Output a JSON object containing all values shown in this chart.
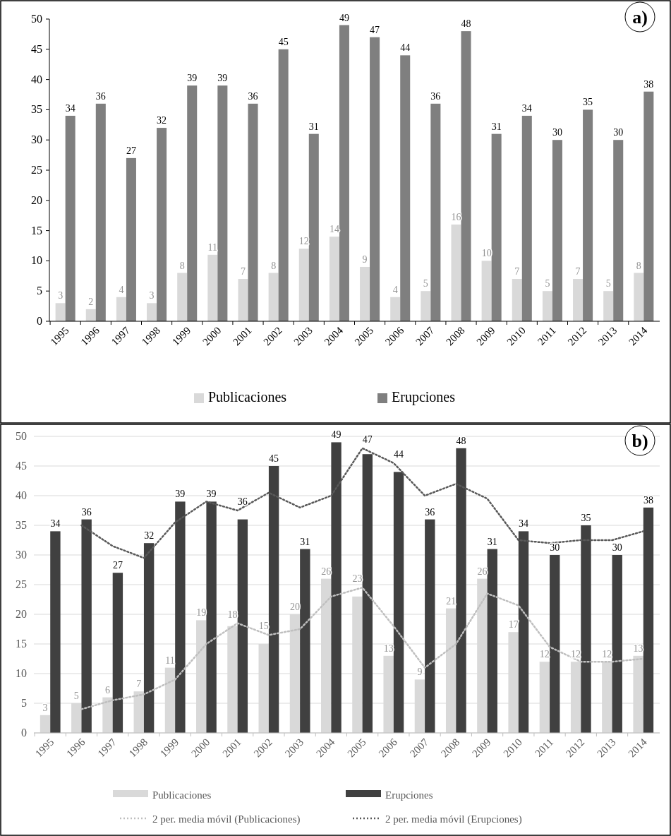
{
  "chart_data": [
    {
      "type": "bar",
      "categories": [
        "1995",
        "1996",
        "1997",
        "1998",
        "1999",
        "2000",
        "2001",
        "2002",
        "2003",
        "2004",
        "2005",
        "2006",
        "2007",
        "2008",
        "2009",
        "2010",
        "2011",
        "2012",
        "2013",
        "2014"
      ],
      "series": [
        {
          "name": "Publicaciones",
          "color": "#d9d9d9",
          "values": [
            3,
            2,
            4,
            3,
            8,
            11,
            7,
            8,
            12,
            14,
            9,
            4,
            5,
            16,
            10,
            7,
            5,
            7,
            5,
            8
          ],
          "value_labels": [
            "3",
            "2",
            "4",
            "3",
            "8",
            "11",
            "7",
            "8",
            "12",
            "14",
            "9",
            "4",
            "5",
            "16",
            "10",
            "7",
            "5",
            "7",
            "5",
            "8"
          ]
        },
        {
          "name": "Erupciones",
          "color": "#7f7f7f",
          "values": [
            34,
            36,
            27,
            32,
            39,
            39,
            36,
            45,
            31,
            49,
            47,
            44,
            36,
            48,
            31,
            34,
            30,
            35,
            30,
            38
          ],
          "value_labels": [
            "34",
            "36",
            "27",
            "32",
            "39",
            "39",
            "36",
            "45",
            "31",
            "49",
            "47",
            "44",
            "36",
            "48",
            "31",
            "34",
            "30",
            "35",
            "30",
            "38"
          ]
        }
      ],
      "ylim": [
        0,
        50
      ],
      "yticks": [
        0,
        5,
        10,
        15,
        20,
        25,
        30,
        35,
        40,
        45,
        50
      ],
      "grid": false,
      "legend": "bottom",
      "annotations": [
        "a)"
      ]
    },
    {
      "type": "bar",
      "categories": [
        "1995",
        "1996",
        "1997",
        "1998",
        "1999",
        "2000",
        "2001",
        "2002",
        "2003",
        "2004",
        "2005",
        "2006",
        "2007",
        "2008",
        "2009",
        "2010",
        "2011",
        "2012",
        "2013",
        "2014"
      ],
      "series": [
        {
          "name": "Publicaciones",
          "color": "#d9d9d9",
          "values": [
            3,
            5,
            6,
            7,
            11,
            19,
            18,
            15,
            20,
            26,
            23,
            13,
            9,
            21,
            26,
            17,
            12,
            12,
            12,
            13
          ],
          "value_labels": [
            "3",
            "5",
            "6",
            "7",
            "11",
            "19",
            "18",
            "15",
            "20",
            "26",
            "23",
            "13",
            "9",
            "21",
            "26",
            "17",
            "12",
            "12",
            "12",
            "13"
          ]
        },
        {
          "name": "Erupciones",
          "color": "#404040",
          "values": [
            34,
            36,
            27,
            32,
            39,
            39,
            36,
            45,
            31,
            49,
            47,
            44,
            36,
            48,
            31,
            34,
            30,
            35,
            30,
            38
          ],
          "value_labels": [
            "34",
            "36",
            "27",
            "32",
            "39",
            "39",
            "36",
            "45",
            "31",
            "49",
            "47",
            "44",
            "36",
            "48",
            "31",
            "34",
            "30",
            "35",
            "30",
            "38"
          ]
        },
        {
          "name": "2 per. media móvil (Publicaciones)",
          "type": "line",
          "line_style": "dotted",
          "color": "#bfbfbf",
          "values": [
            null,
            4,
            5.5,
            6.5,
            9,
            15,
            18.5,
            16.5,
            17.5,
            23,
            24.5,
            18,
            11,
            15,
            23.5,
            21.5,
            14.5,
            12,
            12,
            12.5
          ]
        },
        {
          "name": "2 per. media móvil (Erupciones)",
          "type": "line",
          "line_style": "dotted",
          "color": "#595959",
          "values": [
            null,
            35,
            31.5,
            29.5,
            35.5,
            39,
            37.5,
            40.5,
            38,
            40,
            48,
            45.5,
            40,
            42,
            39.5,
            32.5,
            32,
            32.5,
            32.5,
            34
          ]
        }
      ],
      "ylim": [
        0,
        50
      ],
      "yticks": [
        0,
        5,
        10,
        15,
        20,
        25,
        30,
        35,
        40,
        45,
        50
      ],
      "grid": "y",
      "legend": "bottom",
      "annotations": [
        "b)"
      ]
    }
  ]
}
